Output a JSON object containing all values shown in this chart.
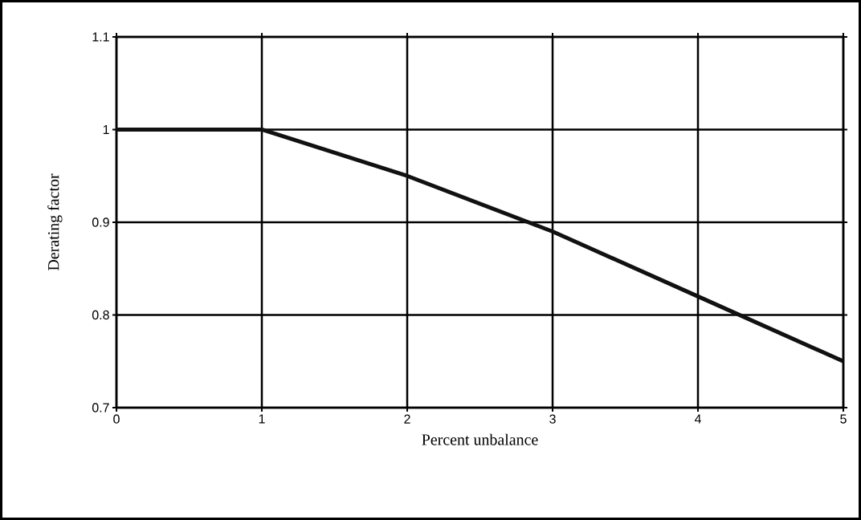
{
  "chart_data": {
    "type": "line",
    "xlabel": "Percent unbalance",
    "ylabel": "Derating factor",
    "x": [
      0,
      1,
      2,
      3,
      4,
      5
    ],
    "series": [
      {
        "color": "#111111",
        "values": [
          1,
          1,
          0.95,
          0.89,
          0.82,
          0.75
        ]
      }
    ],
    "xlim": [
      0,
      5
    ],
    "ylim": [
      0.7,
      1.1
    ],
    "xticks": [
      0,
      1,
      2,
      3,
      4,
      5
    ],
    "yticks": [
      0.7,
      0.8,
      0.9,
      1,
      1.1
    ],
    "grid": true,
    "marker": "none",
    "line_style": "solid"
  }
}
